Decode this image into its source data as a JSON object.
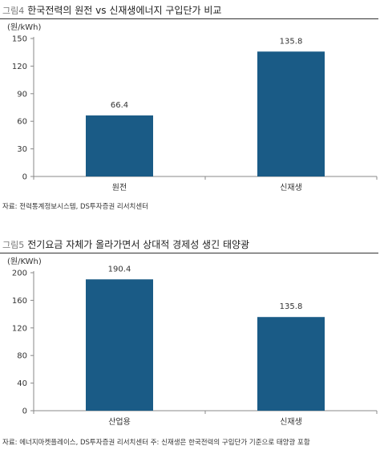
{
  "figures": [
    {
      "number": "그림4",
      "title": "한국전력의 원전 vs 신재생에너지 구입단가 비교",
      "source": "자료: 전력통계정보시스템, DS투자증권 리서치센터",
      "chart_data": {
        "type": "bar",
        "title": "한국전력의 원전 vs 신재생에너지 구입단가 비교",
        "unit_label": "(원/kWh)",
        "categories": [
          "원전",
          "신재생"
        ],
        "values": [
          66.4,
          135.8
        ],
        "value_labels": [
          "66.4",
          "135.8"
        ],
        "ylim": [
          0,
          150
        ],
        "yticks": [
          "0",
          "30",
          "60",
          "90",
          "120",
          "150"
        ],
        "grid": false,
        "bar_color": "#1a5b86"
      }
    },
    {
      "number": "그림5",
      "title": "전기요금 자체가 올라가면서 상대적 경제성 생긴 태양광",
      "source": "자료: 에너지마켓플레이스, DS투자증권 리서치센터 주: 신재생은 한국전력의 구입단가 기준으로 태양광 포함",
      "chart_data": {
        "type": "bar",
        "title": "전기요금 자체가 올라가면서 상대적 경제성 생긴 태양광",
        "unit_label": "(원/KWh)",
        "categories": [
          "산업용",
          "신재생"
        ],
        "values": [
          190.4,
          135.8
        ],
        "value_labels": [
          "190.4",
          "135.8"
        ],
        "ylim": [
          0,
          200
        ],
        "yticks": [
          "0",
          "40",
          "80",
          "120",
          "160",
          "200"
        ],
        "grid": false,
        "bar_color": "#1a5b86"
      }
    }
  ]
}
